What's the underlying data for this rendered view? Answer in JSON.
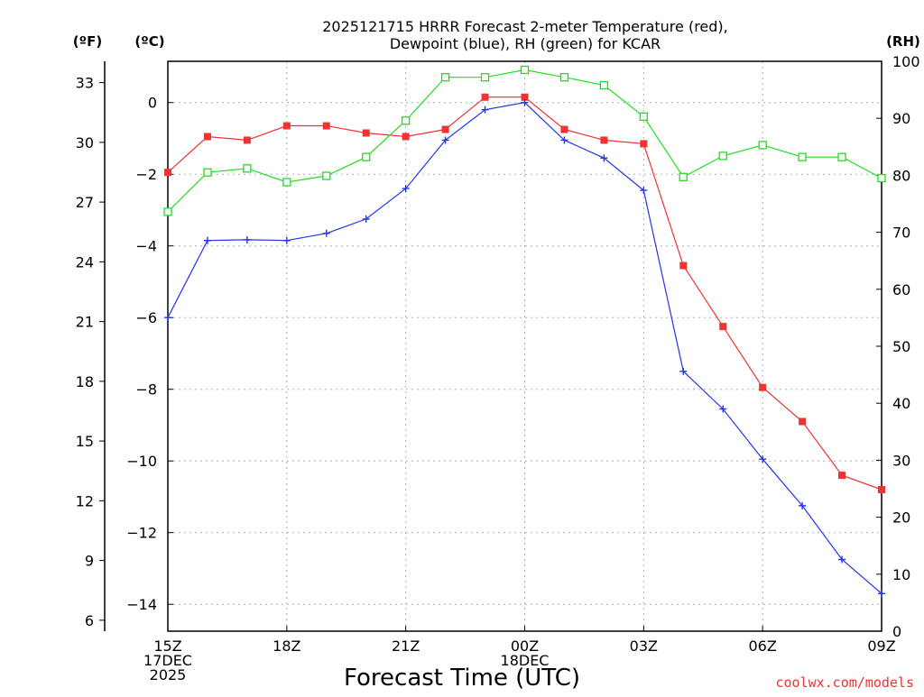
{
  "colors": {
    "temperature": "#ee3333",
    "dewpoint": "#2233ee",
    "rh": "#22dd22",
    "watermark": "#ee3333"
  },
  "chart_data": {
    "type": "line",
    "title_line1": "2025121715 HRRR Forecast 2-meter Temperature (red),",
    "title_line2": "Dewpoint (blue), RH (green) for KCAR",
    "xlabel": "Forecast Time (UTC)",
    "axis_unit_f": "(ºF)",
    "axis_unit_c": "(ºC)",
    "axis_unit_rh": "(RH)",
    "watermark": "coolwx.com/models",
    "x_range": [
      0,
      18
    ],
    "x_ticks": [
      {
        "x": 0,
        "lines": [
          "15Z",
          "17DEC",
          "2025"
        ]
      },
      {
        "x": 3,
        "lines": [
          "18Z"
        ]
      },
      {
        "x": 6,
        "lines": [
          "21Z"
        ]
      },
      {
        "x": 9,
        "lines": [
          "00Z",
          "18DEC"
        ]
      },
      {
        "x": 12,
        "lines": [
          "03Z"
        ]
      },
      {
        "x": 15,
        "lines": [
          "06Z"
        ]
      },
      {
        "x": 18,
        "lines": [
          "09Z"
        ]
      }
    ],
    "c_range": [
      -14.75,
      1.15
    ],
    "c_ticks": [
      0,
      -2,
      -4,
      -6,
      -8,
      -10,
      -12,
      -14
    ],
    "f_ticks": [
      33,
      30,
      27,
      24,
      21,
      18,
      15,
      12,
      9,
      6
    ],
    "rh_range": [
      0,
      100
    ],
    "rh_ticks": [
      0,
      10,
      20,
      30,
      40,
      50,
      60,
      70,
      80,
      90,
      100
    ],
    "series": [
      {
        "name": "Temperature",
        "axis": "c",
        "color": "#ee3333",
        "marker": "filled-square",
        "x": [
          0,
          1,
          2,
          3,
          4,
          5,
          6,
          7,
          8,
          9,
          10,
          11,
          12,
          13,
          14,
          15,
          16,
          17,
          18
        ],
        "values": [
          -1.95,
          -0.95,
          -1.05,
          -0.65,
          -0.65,
          -0.85,
          -0.95,
          -0.75,
          0.15,
          0.15,
          -0.75,
          -1.05,
          -1.15,
          -4.55,
          -6.25,
          -7.95,
          -8.9,
          -10.4,
          -10.8
        ]
      },
      {
        "name": "Dewpoint",
        "axis": "c",
        "color": "#2233ee",
        "marker": "plus",
        "x": [
          0,
          1,
          2,
          3,
          4,
          5,
          6,
          7,
          8,
          9,
          10,
          11,
          12,
          13,
          14,
          15,
          16,
          17,
          18
        ],
        "values": [
          -6.0,
          -3.85,
          -3.83,
          -3.85,
          -3.65,
          -3.25,
          -2.4,
          -1.05,
          -0.2,
          0.0,
          -1.05,
          -1.55,
          -2.45,
          -7.5,
          -8.55,
          -9.95,
          -11.25,
          -12.75,
          -13.7
        ]
      },
      {
        "name": "RH",
        "axis": "rh",
        "color": "#22dd22",
        "marker": "open-square",
        "x": [
          0,
          1,
          2,
          3,
          4,
          5,
          6,
          7,
          8,
          9,
          10,
          11,
          12,
          13,
          14,
          15,
          16,
          17,
          18
        ],
        "values": [
          73.6,
          80.5,
          81.2,
          78.8,
          79.9,
          83.2,
          89.6,
          97.2,
          97.2,
          98.5,
          97.2,
          95.8,
          90.3,
          79.7,
          83.4,
          85.3,
          83.2,
          83.2,
          79.5
        ]
      }
    ]
  }
}
